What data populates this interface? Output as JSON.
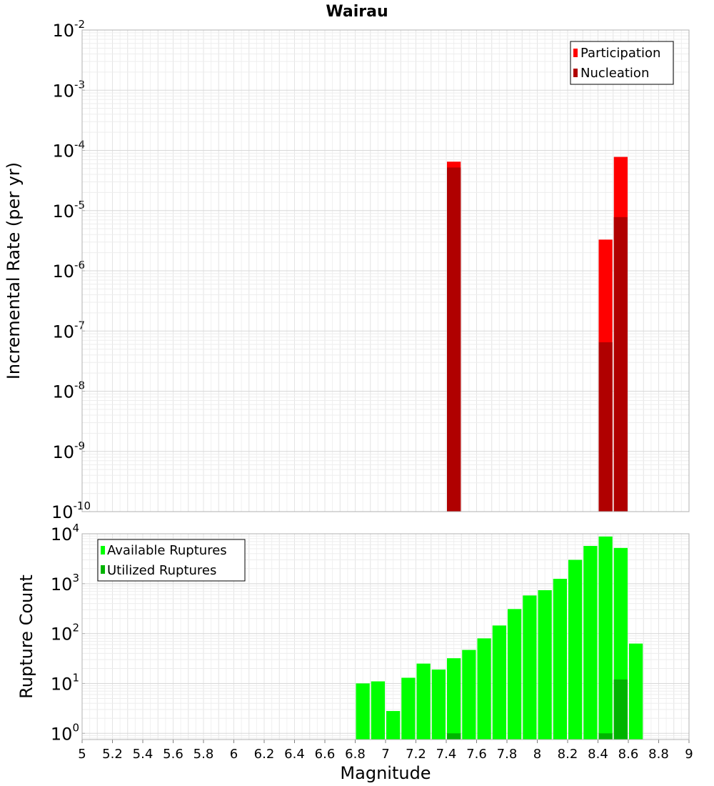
{
  "chart_data": [
    {
      "type": "bar",
      "title": "Wairau",
      "ylabel": "Incremental Rate (per yr)",
      "xlabel": "",
      "ylog": true,
      "ylim": [
        1e-10,
        0.01
      ],
      "xlim": [
        5,
        9
      ],
      "bin_width": 0.1,
      "legend_position": "top-right",
      "series": [
        {
          "name": "Participation",
          "color": "#ff0000",
          "points": [
            {
              "x": 7.45,
              "y": 6.5e-05
            },
            {
              "x": 8.45,
              "y": 3.3e-06
            },
            {
              "x": 8.55,
              "y": 7.8e-05
            }
          ]
        },
        {
          "name": "Nucleation",
          "color": "#b00000",
          "points": [
            {
              "x": 7.45,
              "y": 5.2e-05
            },
            {
              "x": 8.45,
              "y": 6.5e-08
            },
            {
              "x": 8.55,
              "y": 7.8e-06
            }
          ]
        }
      ]
    },
    {
      "type": "bar",
      "title": "",
      "ylabel": "Rupture Count",
      "xlabel": "Magnitude",
      "ylog": true,
      "ylim": [
        0.75,
        10000
      ],
      "xlim": [
        5,
        9
      ],
      "bin_width": 0.1,
      "legend_position": "top-left",
      "x_ticks": [
        "5",
        "5.2",
        "5.4",
        "5.6",
        "5.8",
        "6",
        "6.2",
        "6.4",
        "6.6",
        "6.8",
        "7",
        "7.2",
        "7.4",
        "7.6",
        "7.8",
        "8",
        "8.2",
        "8.4",
        "8.6",
        "8.8",
        "9"
      ],
      "series": [
        {
          "name": "Available Ruptures",
          "color": "#00ff00",
          "points": [
            {
              "x": 6.85,
              "y": 10
            },
            {
              "x": 6.95,
              "y": 11
            },
            {
              "x": 7.05,
              "y": 2.8
            },
            {
              "x": 7.15,
              "y": 13
            },
            {
              "x": 7.25,
              "y": 25
            },
            {
              "x": 7.35,
              "y": 19
            },
            {
              "x": 7.45,
              "y": 32
            },
            {
              "x": 7.55,
              "y": 47
            },
            {
              "x": 7.65,
              "y": 80
            },
            {
              "x": 7.75,
              "y": 145
            },
            {
              "x": 7.85,
              "y": 310
            },
            {
              "x": 7.95,
              "y": 580
            },
            {
              "x": 8.05,
              "y": 740
            },
            {
              "x": 8.15,
              "y": 1250
            },
            {
              "x": 8.25,
              "y": 3000
            },
            {
              "x": 8.35,
              "y": 5700
            },
            {
              "x": 8.45,
              "y": 8800
            },
            {
              "x": 8.55,
              "y": 5200
            },
            {
              "x": 8.65,
              "y": 63
            }
          ]
        },
        {
          "name": "Utilized Ruptures",
          "color": "#00b400",
          "points": [
            {
              "x": 7.45,
              "y": 1
            },
            {
              "x": 8.45,
              "y": 1
            },
            {
              "x": 8.55,
              "y": 12
            }
          ]
        }
      ]
    }
  ]
}
